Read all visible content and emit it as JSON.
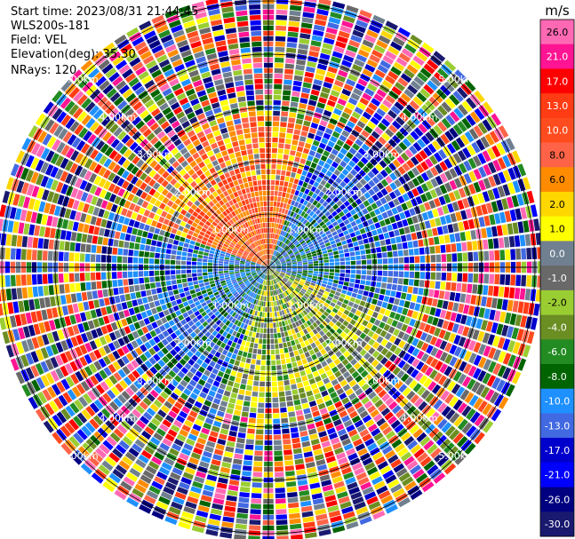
{
  "header": {
    "start_time": "Start time: 2023/08/31 21:44:45",
    "instrument": "WLS200s-181",
    "field": "Field: VEL",
    "elevation": "Elevation(deg): 35.30",
    "nrays": "NRays: 120"
  },
  "chart_data": {
    "type": "ppi-polar",
    "field": "VEL",
    "nrays": 120,
    "range_rings_km": [
      1.0,
      2.0,
      3.0,
      4.0,
      5.0
    ],
    "range_labels": [
      "1.00km",
      "2.00km",
      "3.00km",
      "4.00km",
      "5.00km"
    ],
    "colorbar": {
      "unit": "m/s",
      "ticks": [
        "26.0",
        "21.0",
        "17.0",
        "13.0",
        "10.0",
        "8.0",
        "6.0",
        "2.0",
        "1.0",
        "0.0",
        "-1.0",
        "-2.0",
        "-4.0",
        "-6.0",
        "-8.0",
        "-10.0",
        "-13.0",
        "-17.0",
        "-21.0",
        "-26.0",
        "-30.0"
      ],
      "colors": [
        "#ff69b4",
        "#ff1493",
        "#ff0000",
        "#ff3c14",
        "#ff4c1e",
        "#ff6347",
        "#ff8c00",
        "#ffd700",
        "#ffff00",
        "#708090",
        "#696969",
        "#9acd32",
        "#6b8e23",
        "#228b22",
        "#006400",
        "#1e90ff",
        "#4169e1",
        "#0000cd",
        "#0000ff",
        "#000080",
        "#191970"
      ]
    },
    "velocity_pattern": {
      "towards_sector_deg": [
        200,
        110
      ],
      "away_sector_deg": [
        290,
        20
      ],
      "inner_range_km": 2.5
    }
  }
}
